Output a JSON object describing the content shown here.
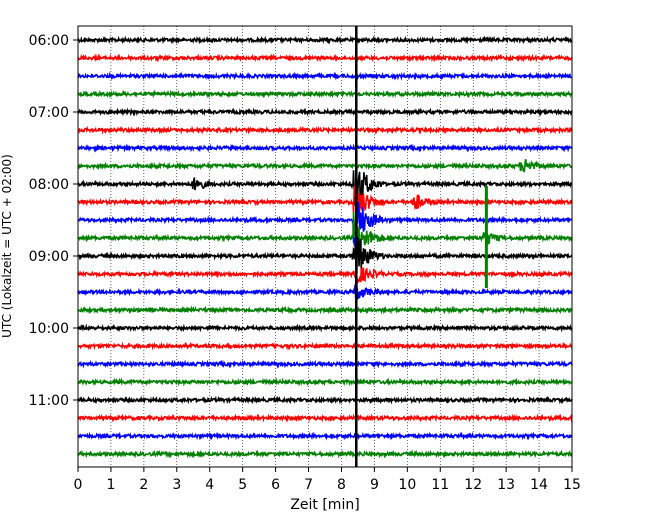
{
  "chart_data": {
    "type": "line",
    "title": "",
    "xlabel": "Zeit  [min]",
    "ylabel": "UTC (Lokalzeit = UTC + 02:00)",
    "xlim": [
      0,
      15
    ],
    "x_ticks": [
      "0",
      "1",
      "2",
      "3",
      "4",
      "5",
      "6",
      "7",
      "8",
      "9",
      "10",
      "11",
      "12",
      "13",
      "14",
      "15"
    ],
    "y_ticks": [
      "06:00",
      "07:00",
      "08:00",
      "09:00",
      "10:00",
      "11:00"
    ],
    "trace_start": "06:00",
    "trace_end": "11:45",
    "trace_interval_min": 15,
    "grid": true,
    "series_colors": [
      "#000000",
      "#ff0000",
      "#0000ff",
      "#008000"
    ],
    "marker_line_x": 8.45,
    "events": [
      {
        "x": 3.6,
        "trace": "08:00"
      },
      {
        "x": 10.3,
        "trace": "08:15"
      },
      {
        "x": 12.4,
        "trace": "08:45"
      },
      {
        "x": 13.6,
        "trace": "07:45"
      },
      {
        "x": 8.5,
        "trace": "08:00"
      },
      {
        "x": 8.5,
        "trace": "09:00"
      }
    ]
  }
}
